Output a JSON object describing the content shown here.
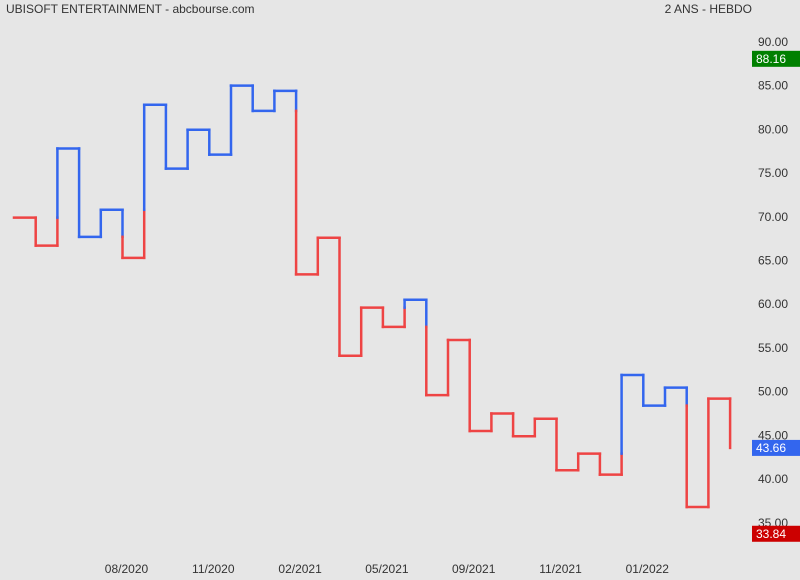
{
  "chart_data": {
    "type": "kagi",
    "title": "UBISOFT ENTERTAINMENT - abcbourse.com",
    "subtitle": "2 ANS - HEBDO",
    "values": [
      70,
      66.8,
      77.9,
      67.8,
      70.9,
      65.4,
      82.9,
      75.6,
      80.05,
      77.2,
      85.1,
      82.2,
      84.5,
      63.5,
      67.7,
      54.2,
      59.7,
      57.5,
      60.6,
      49.7,
      56.0,
      45.6,
      47.6,
      45.0,
      47.0,
      41.1,
      43.0,
      40.6,
      52.0,
      48.5,
      50.55,
      36.9,
      49.3,
      43.66
    ],
    "categories": [
      null,
      null,
      null,
      null,
      null,
      "08/2020",
      null,
      null,
      null,
      "11/2020",
      null,
      null,
      null,
      "02/2021",
      null,
      null,
      null,
      "05/2021",
      null,
      null,
      null,
      "09/2021",
      null,
      null,
      null,
      "11/2021",
      null,
      null,
      null,
      "01/2022",
      null,
      null,
      null,
      null
    ],
    "up_color": "#3366ee",
    "down_color": "#ee4444",
    "ylim": [
      34.5,
      92.6
    ],
    "yticks": [
      {
        "value": 35,
        "label": "35.00"
      },
      {
        "value": 40,
        "label": "40.00"
      },
      {
        "value": 45,
        "label": "45.00"
      },
      {
        "value": 50,
        "label": "50.00"
      },
      {
        "value": 55,
        "label": "55.00"
      },
      {
        "value": 60,
        "label": "60.00"
      },
      {
        "value": 65,
        "label": "65.00"
      },
      {
        "value": 70,
        "label": "70.00"
      },
      {
        "value": 75,
        "label": "75.00"
      },
      {
        "value": 80,
        "label": "80.00"
      },
      {
        "value": 85,
        "label": "85.00"
      },
      {
        "value": 90,
        "label": "90.00"
      }
    ],
    "markers": [
      {
        "value": 88.16,
        "color": "#008000"
      },
      {
        "value": 43.66,
        "color": "#3366ee"
      },
      {
        "value": 33.84,
        "color": "#cc0000"
      }
    ]
  }
}
